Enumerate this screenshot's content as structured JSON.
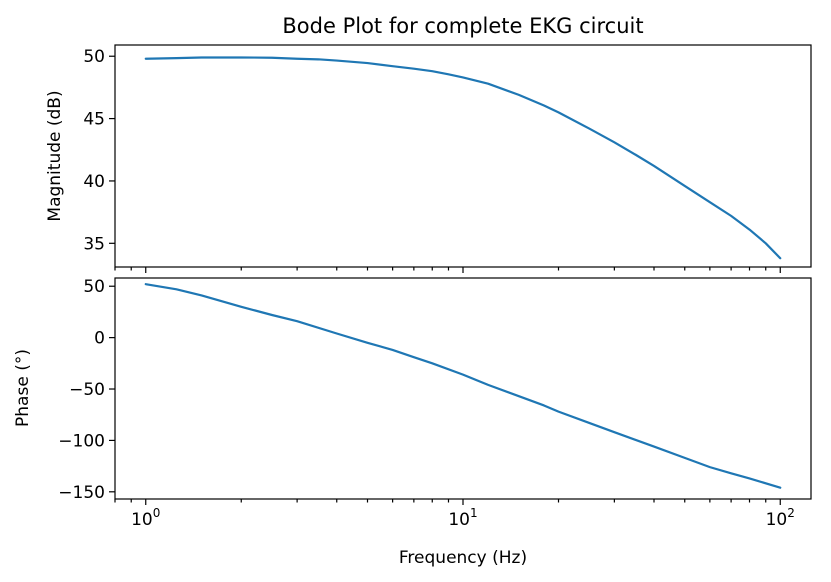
{
  "chart_data": [
    {
      "type": "line",
      "title": "Bode Plot for complete EKG circuit",
      "xlabel": "",
      "ylabel": "Magnitude (dB)",
      "xscale": "log",
      "xlim": [
        0.8,
        125
      ],
      "ylim": [
        33.1,
        50.9
      ],
      "yticks": [
        35,
        40,
        45,
        50
      ],
      "x_tick_labels": "hidden",
      "series_color": "#1f77b4",
      "series": [
        {
          "x": [
            1,
            1.25,
            1.5,
            2,
            2.5,
            3,
            3.5,
            4,
            5,
            6,
            7,
            8,
            9,
            10,
            12,
            15,
            18,
            20,
            25,
            30,
            35,
            40,
            50,
            60,
            70,
            80,
            90,
            100
          ],
          "y": [
            49.8,
            49.85,
            49.9,
            49.9,
            49.88,
            49.8,
            49.75,
            49.65,
            49.45,
            49.2,
            49.0,
            48.8,
            48.55,
            48.3,
            47.8,
            46.9,
            46.05,
            45.5,
            44.2,
            43.1,
            42.1,
            41.2,
            39.6,
            38.3,
            37.2,
            36.1,
            35.0,
            33.8
          ]
        }
      ]
    },
    {
      "type": "line",
      "title": "",
      "xlabel": "Frequency (Hz)",
      "ylabel": "Phase (°)",
      "xscale": "log",
      "xlim": [
        0.8,
        125
      ],
      "ylim": [
        -157,
        58
      ],
      "yticks": [
        50,
        0,
        -50,
        -100,
        -150
      ],
      "ytick_labels": [
        "50",
        "0",
        "−50",
        "−100",
        "−150"
      ],
      "xticks": [
        1,
        10,
        100
      ],
      "xtick_labels": [
        {
          "base": "10",
          "exp": "0"
        },
        {
          "base": "10",
          "exp": "1"
        },
        {
          "base": "10",
          "exp": "2"
        }
      ],
      "series_color": "#1f77b4",
      "series": [
        {
          "x": [
            1,
            1.25,
            1.5,
            2,
            2.5,
            3,
            4,
            5,
            6,
            7,
            8,
            10,
            12,
            15,
            18,
            20,
            25,
            30,
            40,
            50,
            60,
            70,
            80,
            100
          ],
          "y": [
            52,
            47,
            41,
            30,
            22,
            16,
            4,
            -5,
            -12,
            -19,
            -25,
            -36,
            -46,
            -57,
            -66,
            -72,
            -83,
            -92,
            -106,
            -117,
            -126,
            -132,
            -137,
            -146
          ]
        }
      ]
    }
  ]
}
